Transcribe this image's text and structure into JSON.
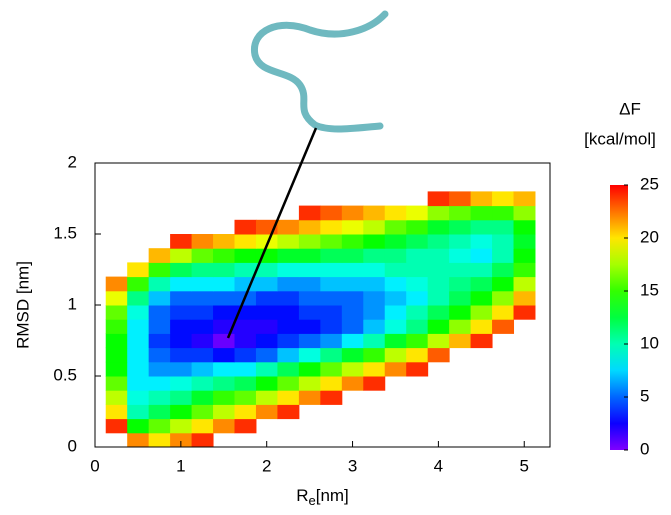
{
  "chart_data": {
    "type": "heatmap",
    "ylabel": "RMSD [nm]",
    "xlabel": [
      "R",
      "e",
      "[nm]"
    ],
    "xlim": [
      0,
      5.3
    ],
    "xticks": [
      0,
      1,
      2,
      3,
      4,
      5
    ],
    "ylim": [
      0,
      2
    ],
    "yticks": [
      0,
      0.5,
      1,
      1.5,
      2
    ],
    "x": [
      0.25,
      0.5,
      0.75,
      1.0,
      1.25,
      1.5,
      1.75,
      2.0,
      2.25,
      2.5,
      2.75,
      3.0,
      3.25,
      3.5,
      3.75,
      4.0,
      4.25,
      4.5,
      4.75,
      5.0
    ],
    "y": [
      0.05,
      0.15,
      0.25,
      0.35,
      0.45,
      0.55,
      0.65,
      0.75,
      0.85,
      0.95,
      1.05,
      1.15,
      1.25,
      1.35,
      1.45,
      1.55,
      1.65,
      1.75
    ],
    "z": [
      [
        null,
        22,
        20,
        22,
        24,
        null,
        null,
        null,
        null,
        null,
        null,
        null,
        null,
        null,
        null,
        null,
        null,
        null,
        null,
        null
      ],
      [
        24,
        14,
        16,
        18,
        20,
        22,
        24,
        null,
        null,
        null,
        null,
        null,
        null,
        null,
        null,
        null,
        null,
        null,
        null,
        null
      ],
      [
        20,
        10,
        12,
        14,
        16,
        18,
        20,
        22,
        24,
        null,
        null,
        null,
        null,
        null,
        null,
        null,
        null,
        null,
        null,
        null
      ],
      [
        18,
        9,
        10,
        11,
        13,
        15,
        16,
        18,
        20,
        22,
        24,
        null,
        null,
        null,
        null,
        null,
        null,
        null,
        null,
        null
      ],
      [
        16,
        8,
        8,
        9,
        10,
        11,
        12,
        14,
        16,
        18,
        20,
        22,
        24,
        null,
        null,
        null,
        null,
        null,
        null,
        null
      ],
      [
        14,
        8,
        6,
        6,
        7,
        8,
        8,
        10,
        12,
        14,
        16,
        18,
        20,
        22,
        24,
        null,
        null,
        null,
        null,
        null
      ],
      [
        14,
        8,
        5,
        4,
        4,
        3,
        4,
        5,
        7,
        9,
        11,
        13,
        15,
        18,
        20,
        23,
        null,
        null,
        null,
        null
      ],
      [
        14,
        8,
        4,
        3,
        2,
        0.5,
        2,
        3,
        4,
        5,
        6,
        8,
        10,
        13,
        15,
        18,
        21,
        24,
        null,
        null
      ],
      [
        15,
        8,
        5,
        3,
        3,
        2,
        2,
        2,
        3,
        3,
        4,
        5,
        7,
        9,
        11,
        14,
        17,
        20,
        23,
        null
      ],
      [
        16,
        9,
        5,
        4,
        4,
        3,
        3,
        3,
        3,
        4,
        4,
        5,
        6,
        8,
        10,
        12,
        14,
        17,
        20,
        24
      ],
      [
        19,
        11,
        7,
        5,
        5,
        5,
        5,
        4,
        4,
        5,
        5,
        5,
        6,
        7,
        8,
        10,
        12,
        14,
        17,
        21
      ],
      [
        22,
        15,
        10,
        8,
        8,
        8,
        7,
        7,
        6,
        6,
        7,
        7,
        7,
        8,
        9,
        10,
        11,
        12,
        14,
        18
      ],
      [
        null,
        20,
        15,
        12,
        11,
        11,
        10,
        10,
        9,
        9,
        9,
        9,
        9,
        10,
        10,
        10,
        10,
        10,
        12,
        15
      ],
      [
        null,
        null,
        21,
        18,
        16,
        15,
        14,
        14,
        13,
        13,
        12,
        12,
        11,
        11,
        10,
        10,
        9,
        8,
        10,
        14
      ],
      [
        null,
        null,
        null,
        24,
        22,
        21,
        20,
        19,
        18,
        17,
        16,
        15,
        14,
        13,
        12,
        11,
        10,
        9,
        10,
        13
      ],
      [
        null,
        null,
        null,
        null,
        null,
        null,
        24,
        23,
        22,
        21,
        20,
        19,
        18,
        16,
        15,
        13,
        12,
        11,
        11,
        14
      ],
      [
        null,
        null,
        null,
        null,
        null,
        null,
        null,
        null,
        null,
        24,
        23,
        22,
        21,
        20,
        19,
        17,
        16,
        15,
        15,
        17
      ],
      [
        null,
        null,
        null,
        null,
        null,
        null,
        null,
        null,
        null,
        null,
        null,
        null,
        null,
        null,
        null,
        24,
        23,
        21,
        20,
        21
      ]
    ],
    "colorbar": {
      "label": [
        "ΔF",
        "[kcal/mol]"
      ],
      "clim": [
        0,
        25
      ],
      "ticks": [
        0,
        5,
        10,
        15,
        20,
        25
      ]
    }
  }
}
